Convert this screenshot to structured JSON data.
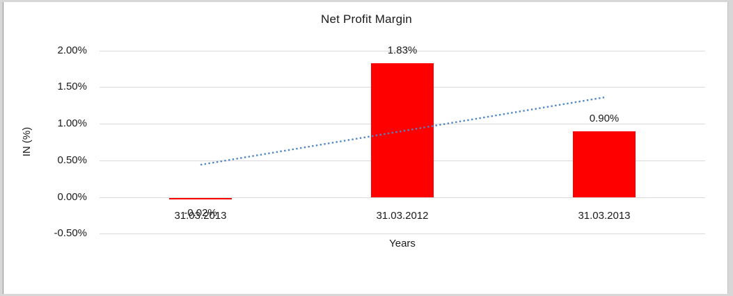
{
  "window": {
    "frame_color": "#d7d7d7",
    "plot_background": "#ffffff"
  },
  "chart_data": {
    "type": "bar",
    "title": "Net Profit Margin",
    "xlabel": "Years",
    "ylabel": "IN (%)",
    "categories": [
      "31.03.2013",
      "31.03.2012",
      "31.03.2013"
    ],
    "values": [
      -0.02,
      1.83,
      0.9
    ],
    "data_labels": [
      "-0.02%",
      "1.83%",
      "0.90%"
    ],
    "bar_color": "#ff0000",
    "ylim": [
      -0.5,
      2.0
    ],
    "yticks": [
      {
        "value": 2.0,
        "label": "2.00%"
      },
      {
        "value": 1.5,
        "label": "1.50%"
      },
      {
        "value": 1.0,
        "label": "1.00%"
      },
      {
        "value": 0.5,
        "label": "0.50%"
      },
      {
        "value": 0.0,
        "label": "0.00%"
      },
      {
        "value": -0.5,
        "label": "-0.50%"
      }
    ],
    "gridline_color": "#d9d9d9",
    "grid": true,
    "legend": null,
    "trendline": {
      "type": "linear",
      "style": "dotted",
      "color": "#4f86c4",
      "start_value": 0.44,
      "end_value": 1.36
    }
  }
}
